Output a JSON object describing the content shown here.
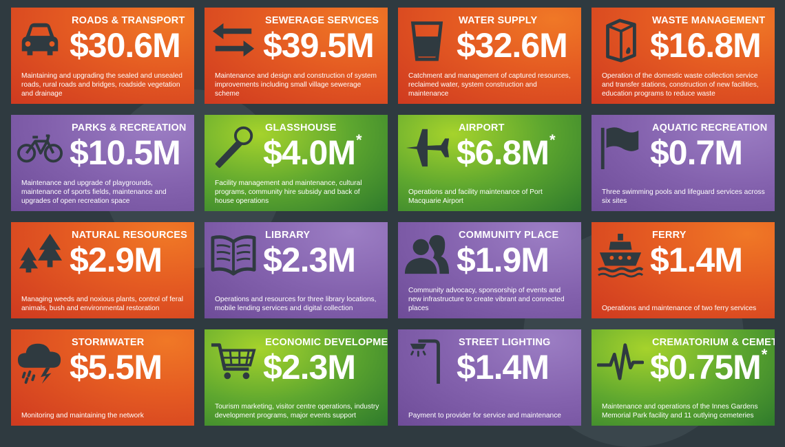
{
  "colors": {
    "background": "#2f3a40",
    "orange": "#e45a22",
    "purple": "#8462ae",
    "green": "#5ea72f",
    "icon": "#2f3a40"
  },
  "tiles": [
    {
      "title": "ROADS & TRANSPORT",
      "amount": "$30.6M",
      "star": "",
      "desc": "Maintaining and upgrading the sealed and unsealed roads, rural roads and bridges, roadside vegetation and drainage",
      "icon": "car-icon",
      "color": "orange"
    },
    {
      "title": "SEWERAGE SERVICES",
      "amount": "$39.5M",
      "star": "",
      "desc": "Maintenance and design and construction of system improvements including small village sewerage scheme",
      "icon": "arrows-icon",
      "color": "orange"
    },
    {
      "title": "WATER SUPPLY",
      "amount": "$32.6M",
      "star": "",
      "desc": "Catchment and management of captured resources, reclaimed water, system construction and maintenance",
      "icon": "glass-icon",
      "color": "orange"
    },
    {
      "title": "WASTE MANAGEMENT",
      "amount": "$16.8M",
      "star": "",
      "desc": "Operation of the domestic waste collection service and transfer stations, construction of new facilities, education programs to reduce waste",
      "icon": "carton-icon",
      "color": "orange"
    },
    {
      "title": "PARKS & RECREATION",
      "amount": "$10.5M",
      "star": "",
      "desc": "Maintenance and upgrade of playgrounds, maintenance of sports fields, maintenance and upgrades of open recreation space",
      "icon": "bicycle-icon",
      "color": "purple"
    },
    {
      "title": "GLASSHOUSE",
      "amount": "$4.0M",
      "star": "*",
      "desc": "Facility management and maintenance, cultural programs, community hire subsidy and back of house operations",
      "icon": "microphone-icon",
      "color": "green"
    },
    {
      "title": "AIRPORT",
      "amount": "$6.8M",
      "star": "*",
      "desc": "Operations and facility maintenance of Port Macquarie Airport",
      "icon": "airplane-icon",
      "color": "green"
    },
    {
      "title": "AQUATIC RECREATION",
      "amount": "$0.7M",
      "star": "",
      "desc": "Three swimming pools and lifeguard services across six sites",
      "icon": "flag-icon",
      "color": "purple"
    },
    {
      "title": "NATURAL RESOURCES",
      "amount": "$2.9M",
      "star": "",
      "desc": "Managing weeds and noxious plants, control of feral animals, bush and environmental restoration",
      "icon": "trees-icon",
      "color": "orange"
    },
    {
      "title": "LIBRARY",
      "amount": "$2.3M",
      "star": "",
      "desc": "Operations and resources for three library locations, mobile lending services and digital collection",
      "icon": "book-icon",
      "color": "purple"
    },
    {
      "title": "COMMUNITY PLACE",
      "amount": "$1.9M",
      "star": "",
      "desc": "Community advocacy, sponsorship of events and new infrastructure to create vibrant and connected places",
      "icon": "people-icon",
      "color": "purple"
    },
    {
      "title": "FERRY",
      "amount": "$1.4M",
      "star": "",
      "desc": "Operations and maintenance of two ferry services",
      "icon": "ferry-icon",
      "color": "orange"
    },
    {
      "title": "STORMWATER",
      "amount": "$5.5M",
      "star": "",
      "desc": "Monitoring and maintaining the network",
      "icon": "storm-cloud-icon",
      "color": "orange"
    },
    {
      "title": "ECONOMIC DEVELOPMENT",
      "amount": "$2.3M",
      "star": "",
      "desc": "Tourism marketing, visitor centre operations, industry development programs, major events support",
      "icon": "shopping-cart-icon",
      "color": "green"
    },
    {
      "title": "STREET LIGHTING",
      "amount": "$1.4M",
      "star": "",
      "desc": "Payment to provider for service and maintenance",
      "icon": "street-lamp-icon",
      "color": "purple"
    },
    {
      "title": "CREMATORIUM & CEMETERIES",
      "amount": "$0.75M",
      "star": "*",
      "desc": "Maintenance and operations of the Innes Gardens Memorial Park facility and 11 outlying cemeteries",
      "icon": "heartbeat-icon",
      "color": "green"
    }
  ]
}
